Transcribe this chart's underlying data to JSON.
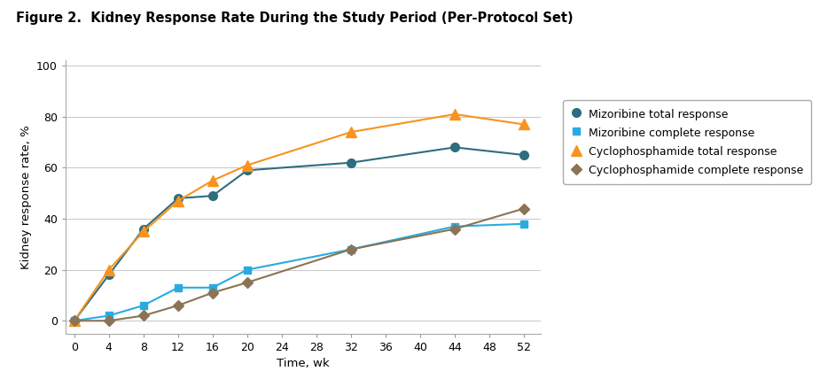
{
  "title": "Figure 2.  Kidney Response Rate During the Study Period (Per-Protocol Set)",
  "xlabel": "Time, wk",
  "ylabel": "Kidney response rate, %",
  "xlim": [
    -1,
    54
  ],
  "ylim": [
    -5,
    102
  ],
  "xticks": [
    0,
    4,
    8,
    12,
    16,
    20,
    24,
    28,
    32,
    36,
    40,
    44,
    48,
    52
  ],
  "yticks": [
    0,
    20,
    40,
    60,
    80,
    100
  ],
  "series": {
    "miz_total": {
      "x": [
        0,
        4,
        8,
        12,
        16,
        20,
        32,
        44,
        52
      ],
      "y": [
        0,
        18,
        36,
        48,
        49,
        59,
        62,
        68,
        65
      ],
      "color": "#2e6d7e",
      "marker": "o",
      "markersize": 7,
      "label": "Mizoribine total response",
      "linewidth": 1.5,
      "markerfacecolor": "#2e6d7e"
    },
    "miz_complete": {
      "x": [
        0,
        4,
        8,
        12,
        16,
        20,
        32,
        44,
        52
      ],
      "y": [
        0,
        2,
        6,
        13,
        13,
        20,
        28,
        37,
        38
      ],
      "color": "#29abe2",
      "marker": "s",
      "markersize": 6,
      "label": "Mizoribine complete response",
      "linewidth": 1.5,
      "markerfacecolor": "#29abe2"
    },
    "cyc_total": {
      "x": [
        0,
        4,
        8,
        12,
        16,
        20,
        32,
        44,
        52
      ],
      "y": [
        0,
        20,
        35,
        47,
        55,
        61,
        74,
        81,
        77
      ],
      "color": "#f7941d",
      "marker": "^",
      "markersize": 8,
      "label": "Cyclophosphamide total response",
      "linewidth": 1.5,
      "markerfacecolor": "#f7941d"
    },
    "cyc_complete": {
      "x": [
        0,
        4,
        8,
        12,
        16,
        20,
        32,
        44,
        52
      ],
      "y": [
        0,
        0,
        2,
        6,
        11,
        15,
        28,
        36,
        44
      ],
      "color": "#8b7355",
      "marker": "D",
      "markersize": 6,
      "label": "Cyclophosphamide complete response",
      "linewidth": 1.5,
      "markerfacecolor": "#8b7355"
    }
  },
  "background_color": "#ffffff",
  "grid_color": "#cccccc",
  "title_fontsize": 10.5,
  "axis_label_fontsize": 9.5,
  "tick_fontsize": 9,
  "legend_fontsize": 9
}
